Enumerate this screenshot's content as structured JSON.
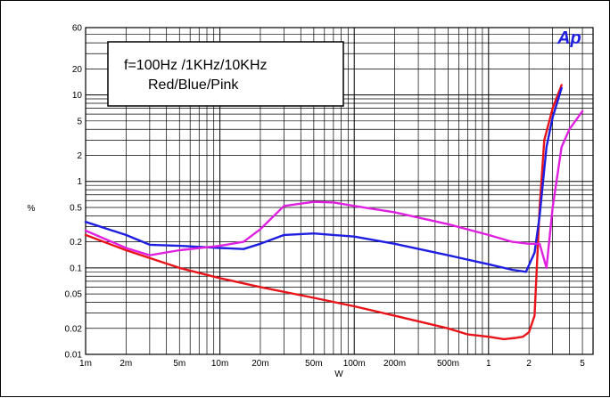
{
  "chart_data": {
    "type": "line",
    "title": "",
    "xlabel": "W",
    "ylabel": "%",
    "x_scale": "log",
    "y_scale": "log",
    "xlim": [
      0.001,
      6
    ],
    "ylim": [
      0.01,
      60
    ],
    "grid": true,
    "x_ticks": [
      {
        "v": 0.001,
        "label": "1m"
      },
      {
        "v": 0.002,
        "label": "2m"
      },
      {
        "v": 0.005,
        "label": "5m"
      },
      {
        "v": 0.01,
        "label": "10m"
      },
      {
        "v": 0.02,
        "label": "20m"
      },
      {
        "v": 0.05,
        "label": "50m"
      },
      {
        "v": 0.1,
        "label": "100m"
      },
      {
        "v": 0.2,
        "label": "200m"
      },
      {
        "v": 0.5,
        "label": "500m"
      },
      {
        "v": 1,
        "label": "1"
      },
      {
        "v": 2,
        "label": "2"
      },
      {
        "v": 5,
        "label": "5"
      }
    ],
    "y_ticks": [
      {
        "v": 0.01,
        "label": "0.01"
      },
      {
        "v": 0.02,
        "label": "0.02"
      },
      {
        "v": 0.05,
        "label": "0.05"
      },
      {
        "v": 0.1,
        "label": "0.1"
      },
      {
        "v": 0.2,
        "label": "0.2"
      },
      {
        "v": 0.5,
        "label": "0.5"
      },
      {
        "v": 1,
        "label": "1"
      },
      {
        "v": 2,
        "label": "2"
      },
      {
        "v": 5,
        "label": "5"
      },
      {
        "v": 10,
        "label": "10"
      },
      {
        "v": 20,
        "label": "20"
      },
      {
        "v": 60,
        "label": "60"
      }
    ],
    "annotation": {
      "line1": "f=100Hz /1KHz/10KHz",
      "line2": "Red/Blue/Pink"
    },
    "logo": "Ap",
    "series": [
      {
        "color": "#e8141a",
        "x": [
          0.001,
          0.002,
          0.005,
          0.01,
          0.02,
          0.05,
          0.1,
          0.2,
          0.5,
          0.7,
          1.0,
          1.3,
          1.6,
          1.8,
          2.0,
          2.2,
          2.4,
          2.6,
          3.0,
          3.5
        ],
        "y": [
          0.24,
          0.16,
          0.1,
          0.076,
          0.06,
          0.045,
          0.036,
          0.028,
          0.02,
          0.017,
          0.016,
          0.015,
          0.0155,
          0.016,
          0.018,
          0.028,
          0.5,
          3.0,
          7.0,
          13.0
        ]
      },
      {
        "color": "#1e1ee0",
        "x": [
          0.001,
          0.002,
          0.003,
          0.005,
          0.01,
          0.015,
          0.02,
          0.03,
          0.05,
          0.1,
          0.2,
          0.5,
          1.0,
          1.5,
          1.9,
          2.2,
          2.4,
          2.7,
          3.0,
          3.5
        ],
        "y": [
          0.34,
          0.24,
          0.185,
          0.18,
          0.17,
          0.165,
          0.19,
          0.24,
          0.25,
          0.23,
          0.19,
          0.14,
          0.11,
          0.095,
          0.09,
          0.15,
          0.4,
          2.5,
          5.5,
          12.0
        ]
      },
      {
        "color": "#e020e0",
        "x": [
          0.001,
          0.002,
          0.003,
          0.005,
          0.01,
          0.015,
          0.02,
          0.03,
          0.05,
          0.07,
          0.1,
          0.2,
          0.5,
          1.0,
          1.5,
          2.0,
          2.4,
          2.7,
          3.0,
          3.5,
          4.0,
          5.0
        ],
        "y": [
          0.27,
          0.17,
          0.14,
          0.16,
          0.18,
          0.2,
          0.28,
          0.52,
          0.58,
          0.57,
          0.52,
          0.44,
          0.32,
          0.24,
          0.2,
          0.19,
          0.19,
          0.1,
          0.5,
          2.5,
          4.0,
          6.5
        ]
      }
    ]
  }
}
